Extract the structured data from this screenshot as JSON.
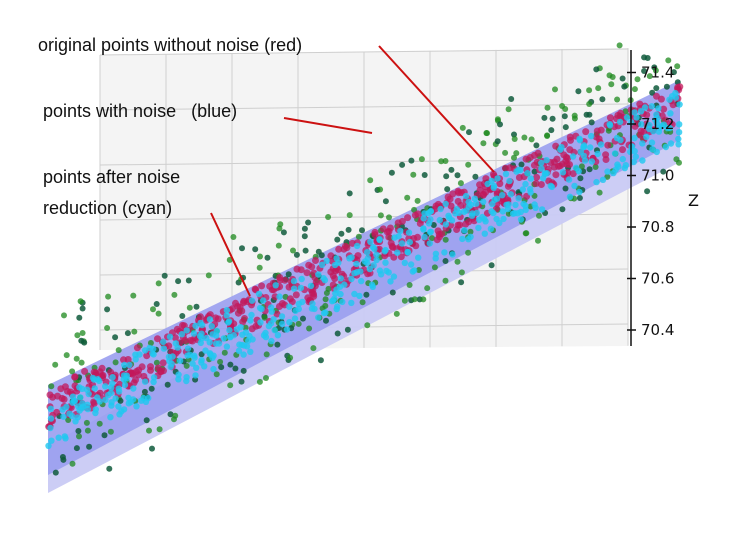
{
  "chart_data": {
    "type": "scatter",
    "projection": "3d",
    "annotations": [
      "original points without noise (red)",
      "points with noise   (blue)",
      "points after noise",
      "reduction (cyan)"
    ],
    "zlabel": "Z",
    "z_ticks": [
      "71.4",
      "71.2",
      "71.0",
      "70.8",
      "70.6",
      "70.4"
    ],
    "z_tick_values": [
      71.4,
      71.2,
      71.0,
      70.8,
      70.6,
      70.4
    ],
    "zlim": [
      70.3,
      71.45
    ],
    "grid": true,
    "series": [
      {
        "name": "original points without noise",
        "color": "#c2185b"
      },
      {
        "name": "points with noise",
        "color": "#1e8a1e"
      },
      {
        "name": "points after noise reduction",
        "color": "#1ec8f0"
      }
    ],
    "surface_color": "#7b7fe6"
  }
}
